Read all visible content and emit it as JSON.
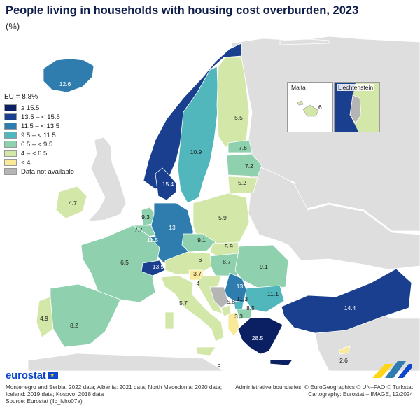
{
  "title": "People living in households with housing cost overburden, 2023",
  "subtitle": "(%)",
  "legend": {
    "eu_label": "EU = 8.8%",
    "classes": [
      {
        "label": "≥ 15.5",
        "color": "#0b1f63"
      },
      {
        "label": "13.5 – < 15.5",
        "color": "#1a3f8f"
      },
      {
        "label": "11.5 – < 13.5",
        "color": "#2f7dae"
      },
      {
        "label": "9.5 – < 11.5",
        "color": "#52b7bc"
      },
      {
        "label": "6.5 – < 9.5",
        "color": "#8fd0ae"
      },
      {
        "label": "4 – < 6.5",
        "color": "#d2e7a8"
      },
      {
        "label": "< 4",
        "color": "#fbe99a"
      },
      {
        "label": "Data not available",
        "color": "#b5b5b5"
      }
    ]
  },
  "colors": {
    "sea": "#ffffff",
    "non_eu_land": "#dedede",
    "border": "#ffffff"
  },
  "countries": [
    {
      "name": "Iceland",
      "value": "12.6",
      "class": 2
    },
    {
      "name": "Norway",
      "value": "",
      "class": 1
    },
    {
      "name": "Sweden",
      "value": "10.9",
      "class": 3
    },
    {
      "name": "Finland",
      "value": "5.5",
      "class": 5
    },
    {
      "name": "Estonia",
      "value": "7.6",
      "class": 4
    },
    {
      "name": "Latvia",
      "value": "7.2",
      "class": 4
    },
    {
      "name": "Lithuania",
      "value": "5.2",
      "class": 5
    },
    {
      "name": "Denmark",
      "value": "15.4",
      "class": 1
    },
    {
      "name": "Ireland",
      "value": "4.7",
      "class": 5
    },
    {
      "name": "Netherlands",
      "value": "9.3",
      "class": 4
    },
    {
      "name": "Belgium",
      "value": "7.7",
      "class": 4
    },
    {
      "name": "Luxembourg",
      "value": "11.5",
      "class": 2
    },
    {
      "name": "Germany",
      "value": "13",
      "class": 2
    },
    {
      "name": "Poland",
      "value": "5.9",
      "class": 5
    },
    {
      "name": "Czechia",
      "value": "9.1",
      "class": 4
    },
    {
      "name": "Slovakia",
      "value": "5.9",
      "class": 5
    },
    {
      "name": "France",
      "value": "6.5",
      "class": 4
    },
    {
      "name": "Switzerland",
      "value": "13.9",
      "class": 1
    },
    {
      "name": "Austria",
      "value": "6",
      "class": 5
    },
    {
      "name": "Hungary",
      "value": "8.7",
      "class": 4
    },
    {
      "name": "Romania",
      "value": "9.1",
      "class": 4
    },
    {
      "name": "Slovenia",
      "value": "3.7",
      "class": 6
    },
    {
      "name": "Croatia",
      "value": "4",
      "class": 5
    },
    {
      "name": "Serbia",
      "value": "13.1",
      "class": 2
    },
    {
      "name": "Bosnia and Herzegovina",
      "value": "",
      "class": 7
    },
    {
      "name": "Montenegro",
      "value": "5.8",
      "class": 5
    },
    {
      "name": "Kosovo",
      "value": "11.3",
      "class": 3
    },
    {
      "name": "Albania",
      "value": "3.3",
      "class": 6
    },
    {
      "name": "North Macedonia",
      "value": "8.5",
      "class": 4
    },
    {
      "name": "Bulgaria",
      "value": "11.1",
      "class": 3
    },
    {
      "name": "Italy",
      "value": "5.7",
      "class": 5
    },
    {
      "name": "Portugal",
      "value": "4.9",
      "class": 5
    },
    {
      "name": "Spain",
      "value": "8.2",
      "class": 4
    },
    {
      "name": "Greece",
      "value": "28.5",
      "class": 0
    },
    {
      "name": "Türkiye",
      "value": "14.4",
      "class": 1
    },
    {
      "name": "Cyprus",
      "value": "2.6",
      "class": 6
    },
    {
      "name": "Malta",
      "value": "6",
      "class": 5
    }
  ],
  "insets": {
    "malta": {
      "title": "Malta",
      "value": "6"
    },
    "liechtenstein": {
      "title": "Liechtenstein"
    }
  },
  "footer": {
    "logo_text": "eurostat",
    "notes": [
      "Montenegro and Serbia: 2022 data; Albania: 2021 data; North Macedonia: 2020 data;",
      "Iceland: 2019 data; Kosovo: 2018 data",
      "Source: Eurostat (ilc_lvho07a)"
    ],
    "credits": [
      "Administrative boundaries: © EuroGeographics © UN–FAO © Turkstat",
      "Cartography: Eurostat – IMAGE, 12/2024"
    ]
  }
}
